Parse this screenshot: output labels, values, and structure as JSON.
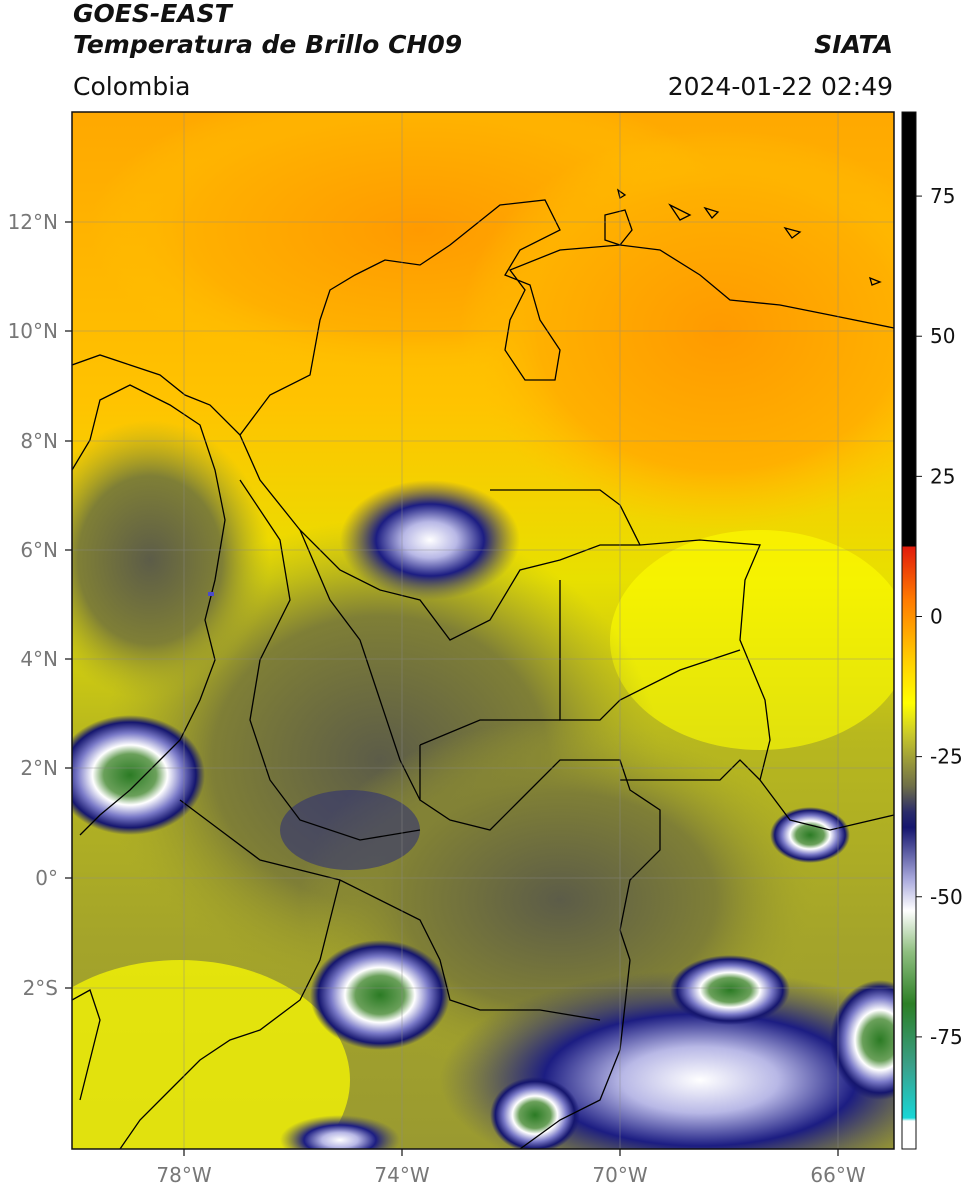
{
  "header": {
    "satellite": "GOES-EAST",
    "product": "Temperatura de Brillo CH09",
    "region": "Colombia",
    "agency": "SIATA",
    "datetime": "2024-01-22 02:49"
  },
  "map": {
    "lon_labels": [
      "78°W",
      "74°W",
      "70°W",
      "66°W"
    ],
    "lat_labels": [
      "12°N",
      "10°N",
      "8°N",
      "6°N",
      "4°N",
      "2°N",
      "0°",
      "2°S"
    ],
    "extent": {
      "lon": [
        -80.0,
        -65.0
      ],
      "lat": [
        -5.0,
        14.0
      ]
    }
  },
  "colorbar": {
    "tick_labels": [
      "75",
      "50",
      "25",
      "0",
      "-25",
      "-50",
      "-75"
    ],
    "tick_values": [
      75,
      50,
      25,
      0,
      -25,
      -50,
      -75
    ],
    "range": [
      -95,
      90
    ],
    "colors": {
      "black": "#000000",
      "red": "#e11a0c",
      "orange": "#ff9d00",
      "yellow": "#ffff00",
      "olive": "#7d7d2a",
      "navy": "#15166e",
      "white": "#ffffff",
      "green": "#2c7f26",
      "cyan": "#18d6d6"
    }
  }
}
